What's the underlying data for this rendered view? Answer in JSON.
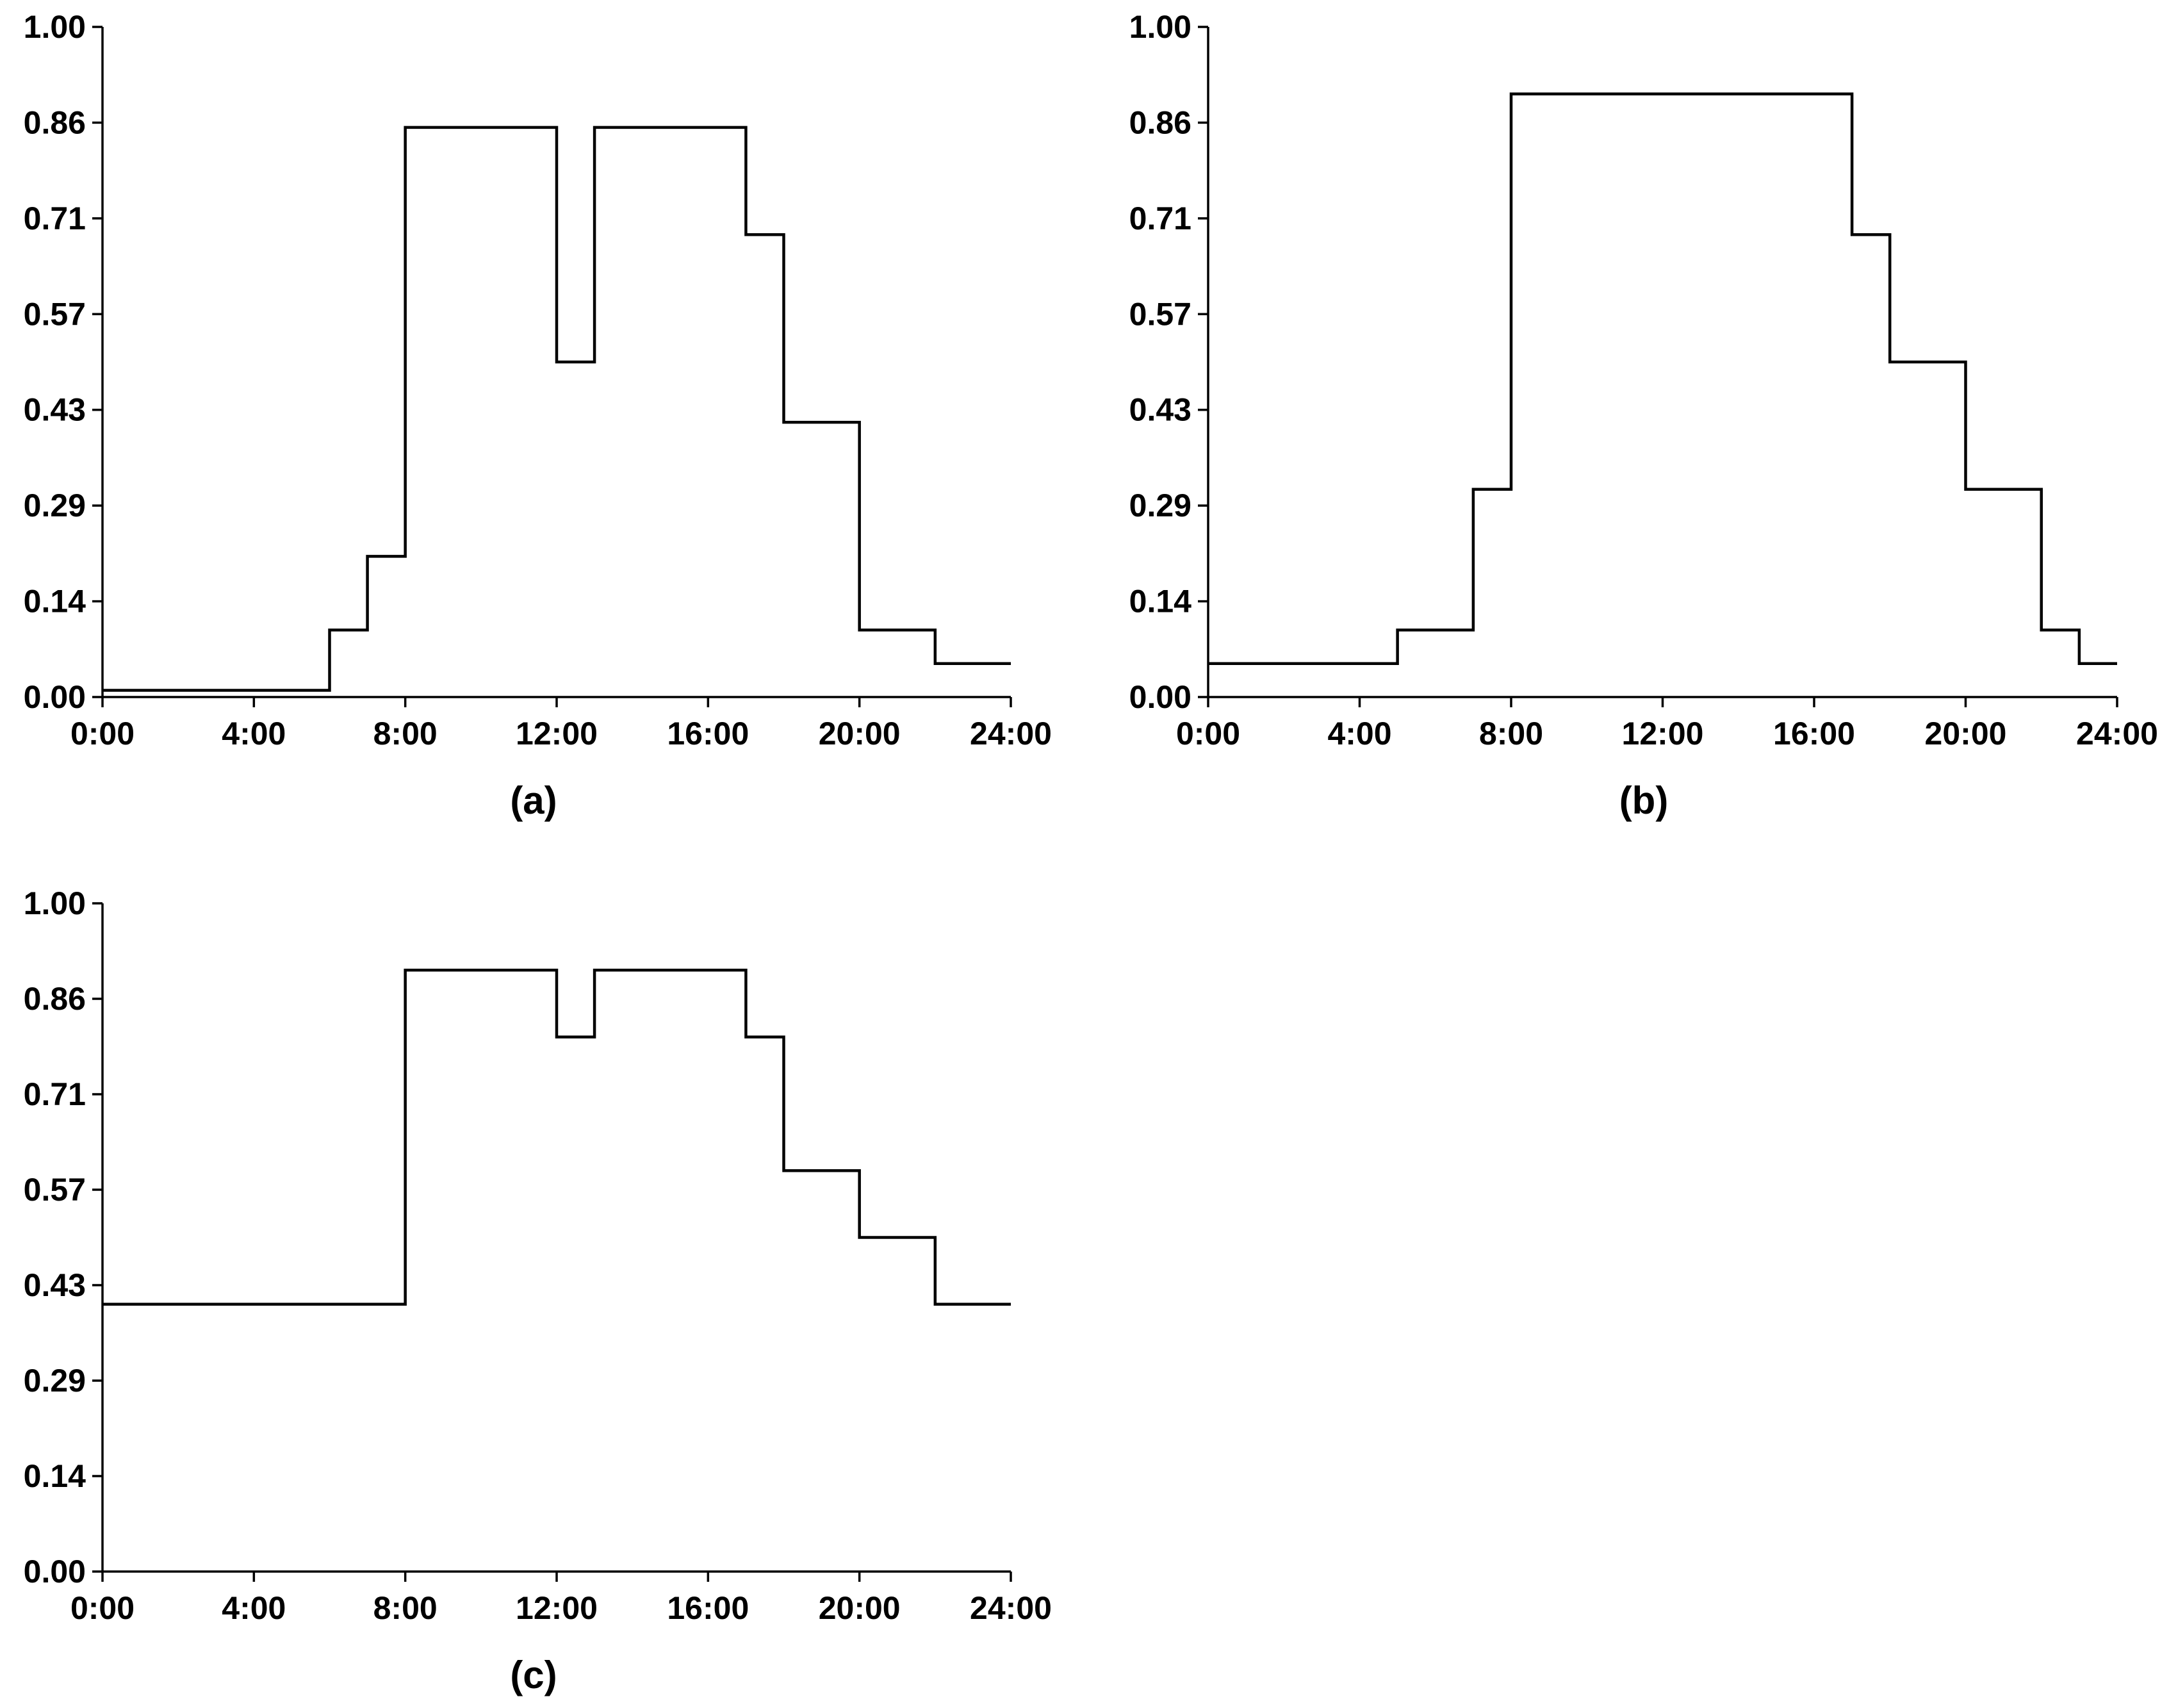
{
  "chart_data": [
    {
      "panel_label": "(a)",
      "type": "line",
      "step": true,
      "x_ticks": [
        "0:00",
        "4:00",
        "8:00",
        "12:00",
        "16:00",
        "20:00",
        "24:00"
      ],
      "y_ticks": [
        "0.00",
        "0.14",
        "0.29",
        "0.43",
        "0.57",
        "0.71",
        "0.86",
        "1.00"
      ],
      "xlim": [
        0,
        24
      ],
      "ylim": [
        0,
        1
      ],
      "grid": false,
      "series": [
        {
          "x": [
            0,
            6,
            7,
            8,
            12,
            13,
            17,
            18,
            20,
            22,
            24
          ],
          "y": [
            0.01,
            0.1,
            0.21,
            0.85,
            0.5,
            0.85,
            0.69,
            0.41,
            0.1,
            0.05,
            0.05
          ]
        }
      ]
    },
    {
      "panel_label": "(b)",
      "type": "line",
      "step": true,
      "x_ticks": [
        "0:00",
        "4:00",
        "8:00",
        "12:00",
        "16:00",
        "20:00",
        "24:00"
      ],
      "y_ticks": [
        "0.00",
        "0.14",
        "0.29",
        "0.43",
        "0.57",
        "0.71",
        "0.86",
        "1.00"
      ],
      "xlim": [
        0,
        24
      ],
      "ylim": [
        0,
        1
      ],
      "grid": false,
      "series": [
        {
          "x": [
            0,
            5,
            7,
            8,
            17,
            18,
            20,
            22,
            23,
            24
          ],
          "y": [
            0.05,
            0.1,
            0.31,
            0.9,
            0.69,
            0.5,
            0.31,
            0.1,
            0.05,
            0.05
          ]
        }
      ]
    },
    {
      "panel_label": "(c)",
      "type": "line",
      "step": true,
      "x_ticks": [
        "0:00",
        "4:00",
        "8:00",
        "12:00",
        "16:00",
        "20:00",
        "24:00"
      ],
      "y_ticks": [
        "0.00",
        "0.14",
        "0.29",
        "0.43",
        "0.57",
        "0.71",
        "0.86",
        "1.00"
      ],
      "xlim": [
        0,
        24
      ],
      "ylim": [
        0,
        1
      ],
      "grid": false,
      "series": [
        {
          "x": [
            0,
            8,
            12,
            13,
            17,
            18,
            20,
            22,
            24
          ],
          "y": [
            0.4,
            0.9,
            0.8,
            0.9,
            0.8,
            0.6,
            0.5,
            0.4,
            0.4
          ]
        }
      ]
    }
  ]
}
